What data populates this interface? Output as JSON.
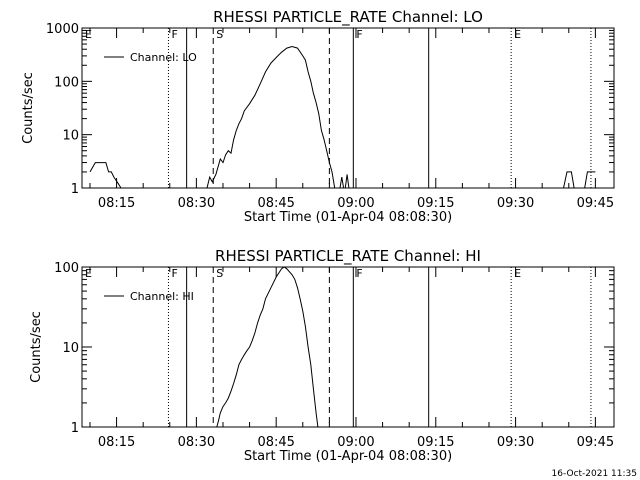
{
  "footer": {
    "timestamp": "16-Oct-2021 11:35"
  },
  "chart_data": [
    {
      "type": "line",
      "title": "RHESSI PARTICLE_RATE Channel: LO",
      "xlabel": "Start Time (01-Apr-04 08:08:30)",
      "ylabel": "Counts/sec",
      "yscale": "log",
      "ylim": [
        1,
        1000
      ],
      "yticks": [
        1,
        10,
        100,
        1000
      ],
      "yticklabels": [
        "1",
        "10",
        "100",
        "1000"
      ],
      "xlim": [
        "08:08:30",
        "09:48:30"
      ],
      "xticks": [
        "08:15",
        "08:30",
        "08:45",
        "09:00",
        "09:15",
        "09:30",
        "09:45"
      ],
      "legend": {
        "label": "Channel: LO",
        "position": "top-left"
      },
      "markers": [
        {
          "label": "E",
          "time": "08:08:30",
          "style": "dotted"
        },
        {
          "label": "F",
          "time": "08:24:45",
          "style": "dotted"
        },
        {
          "label": "",
          "time": "08:28:10",
          "style": "solid"
        },
        {
          "label": "S",
          "time": "08:33:10",
          "style": "dashed"
        },
        {
          "label": "",
          "time": "08:55:00",
          "style": "dashed"
        },
        {
          "label": "F",
          "time": "08:59:30",
          "style": "solid"
        },
        {
          "label": "",
          "time": "09:13:40",
          "style": "solid"
        },
        {
          "label": "E",
          "time": "09:29:10",
          "style": "dotted"
        },
        {
          "label": "",
          "time": "09:44:10",
          "style": "dotted"
        }
      ],
      "series": [
        {
          "name": "Channel: LO",
          "segments": [
            [
              [
                "08:10:00",
                2
              ],
              [
                "08:11:00",
                3
              ],
              [
                "08:13:00",
                3
              ],
              [
                "08:13:30",
                2
              ],
              [
                "08:14:00",
                2
              ],
              [
                "08:14:30",
                1.6
              ],
              [
                "08:15:20",
                1.2
              ],
              [
                "08:15:50",
                1
              ]
            ],
            [
              [
                "08:32:00",
                1
              ],
              [
                "08:32:30",
                1.6
              ],
              [
                "08:33:00",
                1.3
              ],
              [
                "08:33:40",
                1.8
              ],
              [
                "08:34:30",
                3.5
              ],
              [
                "08:35:00",
                3
              ],
              [
                "08:35:30",
                4.2
              ],
              [
                "08:36:00",
                5
              ],
              [
                "08:36:30",
                4.5
              ],
              [
                "08:37:00",
                8
              ],
              [
                "08:37:30",
                12
              ],
              [
                "08:38:00",
                16
              ],
              [
                "08:38:30",
                20
              ],
              [
                "08:39:00",
                28
              ],
              [
                "08:40:00",
                38
              ],
              [
                "08:41:00",
                55
              ],
              [
                "08:42:00",
                90
              ],
              [
                "08:43:00",
                150
              ],
              [
                "08:44:00",
                220
              ],
              [
                "08:45:00",
                280
              ],
              [
                "08:46:00",
                350
              ],
              [
                "08:47:00",
                420
              ],
              [
                "08:48:00",
                450
              ],
              [
                "08:49:00",
                420
              ],
              [
                "08:50:00",
                300
              ],
              [
                "08:50:30",
                250
              ],
              [
                "08:51:00",
                150
              ],
              [
                "08:51:30",
                100
              ],
              [
                "08:52:00",
                60
              ],
              [
                "08:52:30",
                40
              ],
              [
                "08:53:00",
                25
              ],
              [
                "08:53:30",
                12
              ],
              [
                "08:54:00",
                8
              ],
              [
                "08:54:30",
                5
              ],
              [
                "08:55:00",
                3
              ],
              [
                "08:55:30",
                2
              ],
              [
                "08:56:00",
                1
              ]
            ],
            [
              [
                "08:57:00",
                1
              ],
              [
                "08:57:20",
                1.6
              ],
              [
                "08:57:40",
                1
              ]
            ],
            [
              [
                "08:58:00",
                1
              ],
              [
                "08:58:20",
                1.8
              ],
              [
                "08:58:40",
                1
              ]
            ],
            [
              [
                "09:39:00",
                1
              ],
              [
                "09:39:40",
                2
              ],
              [
                "09:40:30",
                2
              ],
              [
                "09:41:00",
                1
              ]
            ],
            [
              [
                "09:43:00",
                1
              ],
              [
                "09:43:30",
                2
              ],
              [
                "09:45:00",
                2
              ]
            ]
          ]
        }
      ]
    },
    {
      "type": "line",
      "title": "RHESSI PARTICLE_RATE Channel: HI",
      "xlabel": "Start Time (01-Apr-04 08:08:30)",
      "ylabel": "Counts/sec",
      "yscale": "log",
      "ylim": [
        1,
        100
      ],
      "yticks": [
        1,
        10,
        100
      ],
      "yticklabels": [
        "1",
        "10",
        "100"
      ],
      "xlim": [
        "08:08:30",
        "09:48:30"
      ],
      "xticks": [
        "08:15",
        "08:30",
        "08:45",
        "09:00",
        "09:15",
        "09:30",
        "09:45"
      ],
      "legend": {
        "label": "Channel: HI",
        "position": "top-left"
      },
      "markers": [
        {
          "label": "E",
          "time": "08:08:30",
          "style": "dotted"
        },
        {
          "label": "F",
          "time": "08:24:45",
          "style": "dotted"
        },
        {
          "label": "",
          "time": "08:28:10",
          "style": "solid"
        },
        {
          "label": "S",
          "time": "08:33:10",
          "style": "dashed"
        },
        {
          "label": "",
          "time": "08:55:00",
          "style": "dashed"
        },
        {
          "label": "F",
          "time": "08:59:30",
          "style": "solid"
        },
        {
          "label": "",
          "time": "09:13:40",
          "style": "solid"
        },
        {
          "label": "E",
          "time": "09:29:10",
          "style": "dotted"
        },
        {
          "label": "",
          "time": "09:44:10",
          "style": "dotted"
        }
      ],
      "series": [
        {
          "name": "Channel: HI",
          "segments": [
            [
              [
                "08:33:50",
                1
              ],
              [
                "08:34:10",
                1.2
              ],
              [
                "08:34:30",
                1.5
              ],
              [
                "08:35:00",
                1.8
              ],
              [
                "08:35:30",
                2
              ],
              [
                "08:36:00",
                2.3
              ],
              [
                "08:36:30",
                2.8
              ],
              [
                "08:37:00",
                3.5
              ],
              [
                "08:37:30",
                4.5
              ],
              [
                "08:38:00",
                6
              ],
              [
                "08:38:30",
                7
              ],
              [
                "08:39:00",
                8
              ],
              [
                "08:39:30",
                9
              ],
              [
                "08:40:00",
                10
              ],
              [
                "08:40:30",
                12
              ],
              [
                "08:41:00",
                15
              ],
              [
                "08:41:30",
                20
              ],
              [
                "08:42:00",
                25
              ],
              [
                "08:42:30",
                30
              ],
              [
                "08:43:00",
                40
              ],
              [
                "08:44:00",
                55
              ],
              [
                "08:45:00",
                75
              ],
              [
                "08:46:00",
                95
              ],
              [
                "08:46:30",
                100
              ],
              [
                "08:47:00",
                95
              ],
              [
                "08:48:00",
                80
              ],
              [
                "08:48:30",
                70
              ],
              [
                "08:49:00",
                55
              ],
              [
                "08:49:30",
                40
              ],
              [
                "08:50:00",
                28
              ],
              [
                "08:50:30",
                18
              ],
              [
                "08:51:00",
                10
              ],
              [
                "08:51:30",
                6
              ],
              [
                "08:52:00",
                3
              ],
              [
                "08:52:30",
                1.5
              ],
              [
                "08:52:50",
                1
              ]
            ]
          ]
        }
      ]
    }
  ]
}
